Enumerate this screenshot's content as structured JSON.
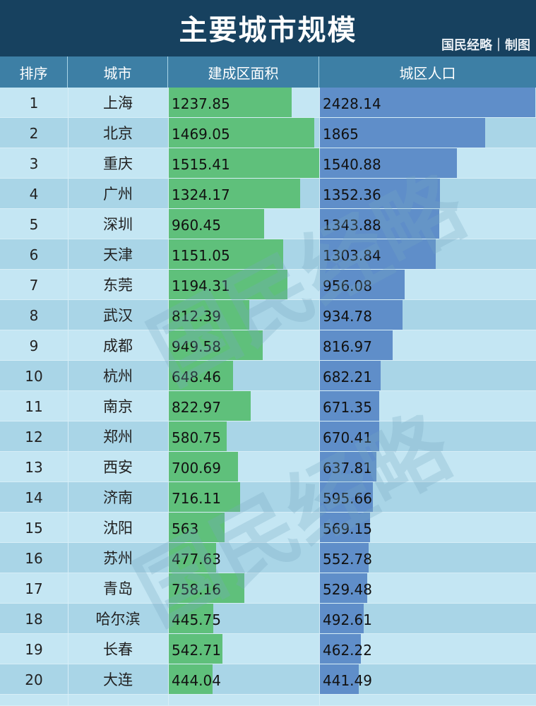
{
  "header": {
    "title": "主要城市规模",
    "credit": "国民经略｜制图"
  },
  "columns": [
    "排序",
    "城市",
    "建成区面积",
    "城区人口"
  ],
  "watermark": "国民经略",
  "chart_data": {
    "type": "table",
    "columns": [
      "排序",
      "城市",
      "建成区面积",
      "城区人口"
    ],
    "rows": [
      {
        "rank": "1",
        "city": "上海",
        "area": 1237.85,
        "population": 2428.14
      },
      {
        "rank": "2",
        "city": "北京",
        "area": 1469.05,
        "population": 1865
      },
      {
        "rank": "3",
        "city": "重庆",
        "area": 1515.41,
        "population": 1540.88
      },
      {
        "rank": "4",
        "city": "广州",
        "area": 1324.17,
        "population": 1352.36
      },
      {
        "rank": "5",
        "city": "深圳",
        "area": 960.45,
        "population": 1343.88
      },
      {
        "rank": "6",
        "city": "天津",
        "area": 1151.05,
        "population": 1303.84
      },
      {
        "rank": "7",
        "city": "东莞",
        "area": 1194.31,
        "population": 956.08
      },
      {
        "rank": "8",
        "city": "武汉",
        "area": 812.39,
        "population": 934.78
      },
      {
        "rank": "9",
        "city": "成都",
        "area": 949.58,
        "population": 816.97
      },
      {
        "rank": "10",
        "city": "杭州",
        "area": 648.46,
        "population": 682.21
      },
      {
        "rank": "11",
        "city": "南京",
        "area": 822.97,
        "population": 671.35
      },
      {
        "rank": "12",
        "city": "郑州",
        "area": 580.75,
        "population": 670.41
      },
      {
        "rank": "13",
        "city": "西安",
        "area": 700.69,
        "population": 637.81
      },
      {
        "rank": "14",
        "city": "济南",
        "area": 716.11,
        "population": 595.66
      },
      {
        "rank": "15",
        "city": "沈阳",
        "area": 563,
        "population": 569.15
      },
      {
        "rank": "16",
        "city": "苏州",
        "area": 477.63,
        "population": 552.78
      },
      {
        "rank": "17",
        "city": "青岛",
        "area": 758.16,
        "population": 529.48
      },
      {
        "rank": "18",
        "city": "哈尔滨",
        "area": 445.75,
        "population": 492.61
      },
      {
        "rank": "19",
        "city": "长春",
        "area": 542.71,
        "population": 462.22
      },
      {
        "rank": "20",
        "city": "大连",
        "area": 444.04,
        "population": 441.49
      }
    ],
    "bar_colors": {
      "area": "#5fc07b",
      "population": "#5f8ec9"
    }
  }
}
